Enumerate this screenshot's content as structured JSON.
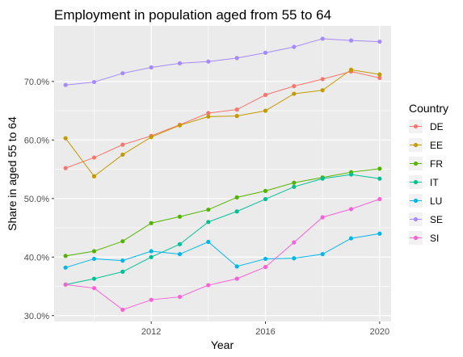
{
  "chart_data": {
    "type": "line",
    "title": "Employment in population aged from 55 to 64",
    "xlabel": "Year",
    "ylabel": "Share in aged 55 to 64",
    "x": [
      2009,
      2010,
      2011,
      2012,
      2013,
      2014,
      2015,
      2016,
      2017,
      2018,
      2019,
      2020
    ],
    "xlim": [
      2008.6,
      2020.4
    ],
    "ylim": [
      29.0,
      79.5
    ],
    "x_ticks": [
      2012,
      2016,
      2020
    ],
    "y_ticks": [
      30,
      40,
      50,
      60,
      70
    ],
    "y_tick_labels": [
      "30.0%",
      "40.0%",
      "50.0%",
      "60.0%",
      "70.0%"
    ],
    "grid": true,
    "legend_title": "Country",
    "legend_position": "right",
    "series": [
      {
        "name": "DE",
        "color": "#F8766D",
        "values": [
          55.2,
          57.0,
          59.2,
          60.7,
          62.6,
          64.6,
          65.2,
          67.7,
          69.2,
          70.4,
          71.7,
          70.6
        ]
      },
      {
        "name": "EE",
        "color": "#C49A00",
        "values": [
          60.3,
          53.8,
          57.5,
          60.5,
          62.5,
          64.0,
          64.1,
          65.0,
          67.9,
          68.5,
          72.0,
          71.2
        ]
      },
      {
        "name": "FR",
        "color": "#53B400",
        "values": [
          40.2,
          41.0,
          42.7,
          45.8,
          46.9,
          48.1,
          50.2,
          51.3,
          52.7,
          53.6,
          54.5,
          55.1
        ]
      },
      {
        "name": "IT",
        "color": "#00C094",
        "values": [
          35.3,
          36.3,
          37.5,
          40.0,
          42.2,
          46.0,
          47.8,
          49.9,
          52.0,
          53.4,
          54.1,
          53.4
        ]
      },
      {
        "name": "LU",
        "color": "#00B6EB",
        "values": [
          38.2,
          39.7,
          39.4,
          41.0,
          40.5,
          42.6,
          38.4,
          39.7,
          39.8,
          40.5,
          43.2,
          44.0
        ]
      },
      {
        "name": "SE",
        "color": "#A58AFF",
        "values": [
          69.4,
          69.9,
          71.4,
          72.4,
          73.1,
          73.4,
          74.0,
          74.9,
          75.9,
          77.3,
          77.0,
          76.8
        ]
      },
      {
        "name": "SI",
        "color": "#FB61D7",
        "values": [
          35.3,
          34.7,
          31.0,
          32.7,
          33.2,
          35.2,
          36.3,
          38.3,
          42.5,
          46.8,
          48.2,
          49.9
        ]
      }
    ]
  }
}
